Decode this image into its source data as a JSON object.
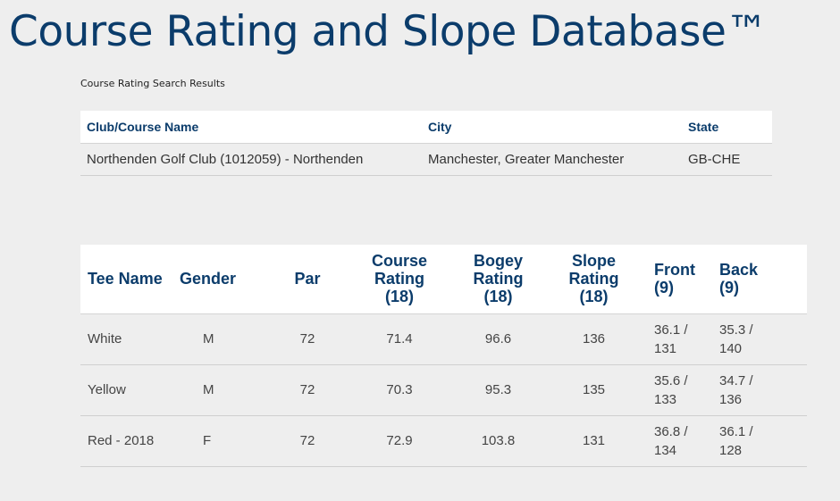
{
  "header": {
    "title": "Course Rating and Slope Database™",
    "subtitle": "Course Rating Search Results"
  },
  "course_table": {
    "headers": {
      "name": "Club/Course Name",
      "city": "City",
      "state": "State"
    },
    "rows": [
      {
        "name": "Northenden Golf Club (1012059) - Northenden",
        "city": "Manchester, Greater Manchester",
        "state": "GB-CHE"
      }
    ]
  },
  "tee_table": {
    "headers": {
      "tee_name": "Tee Name",
      "gender": "Gender",
      "par": "Par",
      "course_rating": [
        "Course",
        "Rating",
        "(18)"
      ],
      "bogey_rating": [
        "Bogey",
        "Rating",
        "(18)"
      ],
      "slope_rating": [
        "Slope",
        "Rating",
        "(18)"
      ],
      "front": [
        "Front",
        "(9)"
      ],
      "back": [
        "Back",
        "(9)"
      ]
    },
    "rows": [
      {
        "tee_name": "White",
        "gender": "M",
        "par": "72",
        "course_rating": "71.4",
        "bogey_rating": "96.6",
        "slope_rating": "136",
        "front": [
          "36.1 /",
          "131"
        ],
        "back": [
          "35.3 /",
          "140"
        ]
      },
      {
        "tee_name": "Yellow",
        "gender": "M",
        "par": "72",
        "course_rating": "70.3",
        "bogey_rating": "95.3",
        "slope_rating": "135",
        "front": [
          "35.6 /",
          "133"
        ],
        "back": [
          "34.7 /",
          "136"
        ]
      },
      {
        "tee_name": "Red - 2018",
        "gender": "F",
        "par": "72",
        "course_rating": "72.9",
        "bogey_rating": "103.8",
        "slope_rating": "131",
        "front": [
          "36.8 /",
          "134"
        ],
        "back": [
          "36.1 /",
          "128"
        ]
      }
    ]
  },
  "colors": {
    "background": "#eeeeee",
    "header_text": "#0b3c6b",
    "body_text": "#333333",
    "table_header_bg": "#ffffff",
    "row_border": "#cfcfcf"
  }
}
